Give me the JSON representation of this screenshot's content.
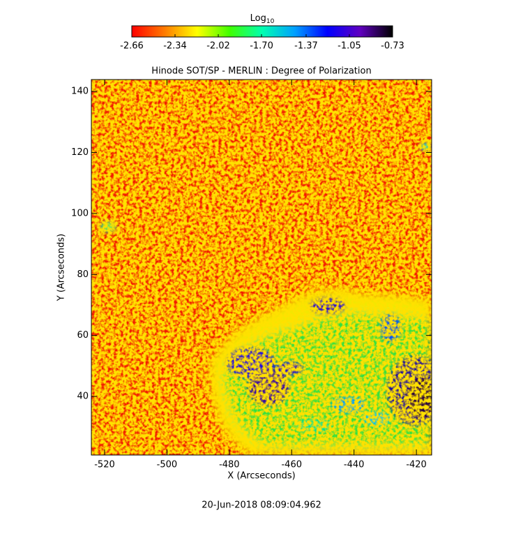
{
  "chart_data": {
    "type": "image",
    "title": "Hinode SOT/SP - MERLIN : Degree of Polarization",
    "x_label": "X (Arcseconds)",
    "y_label": "Y (Arcseconds)",
    "footer": "20-Jun-2018 08:09:04.962",
    "xlim": [
      -524.25,
      -415.1
    ],
    "ylim": [
      20.8,
      143.9
    ],
    "xticks": [
      -520,
      -500,
      -480,
      -460,
      -440,
      -420
    ],
    "yticks": [
      40,
      60,
      80,
      100,
      120,
      140
    ],
    "colorbar": {
      "label": "Log",
      "label_subscript": "10",
      "clim": [
        -2.66,
        -0.73
      ],
      "ticks": [
        -2.66,
        -2.34,
        -2.02,
        {
          "value": -1.7,
          "label": "-1.70"
        },
        -1.37,
        -1.05,
        -0.73
      ],
      "colormap": [
        "#ff0000",
        "#ff7a00",
        "#ffff00",
        "#40ff00",
        "#00ffb0",
        "#00a0ff",
        "#0000ff",
        "#6000c0",
        "#000000"
      ]
    }
  }
}
